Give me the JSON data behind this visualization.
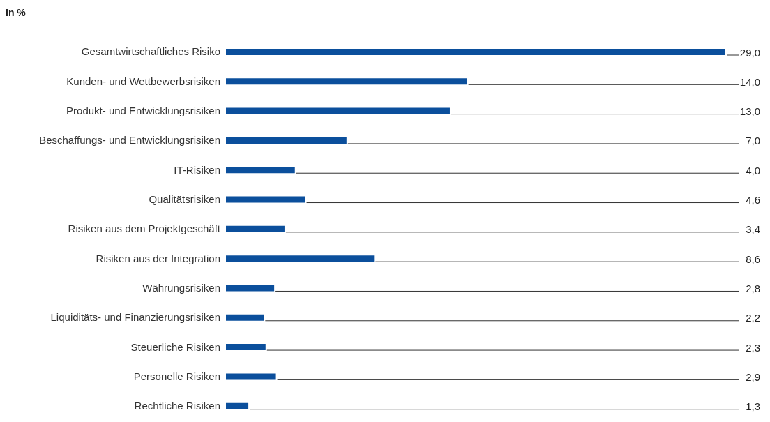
{
  "chart_data": {
    "type": "bar",
    "orientation": "horizontal",
    "title": "In %",
    "categories": [
      "Gesamtwirtschaftliches Risiko",
      "Kunden- und Wettbewerbsrisiken",
      "Produkt- und Entwicklungsrisiken",
      "Beschaffungs- und Entwicklungsrisiken",
      "IT-Risiken",
      "Qualitätsrisiken",
      "Risiken aus dem Projektgeschäft",
      "Risiken aus der Integration",
      "Währungsrisiken",
      "Liquiditäts- und Finanzierungsrisiken",
      "Steuerliche Risiken",
      "Personelle Risiken",
      "Rechtliche Risiken"
    ],
    "values": [
      29.0,
      14.0,
      13.0,
      7.0,
      4.0,
      4.6,
      3.4,
      8.6,
      2.8,
      2.2,
      2.3,
      2.9,
      1.3
    ],
    "value_labels": [
      "29,0",
      "14,0",
      "13,0",
      "7,0",
      "4,0",
      "4,6",
      "3,4",
      "8,6",
      "2,8",
      "2,2",
      "2,3",
      "2,9",
      "1,3"
    ],
    "color": "#0b4f9c"
  }
}
